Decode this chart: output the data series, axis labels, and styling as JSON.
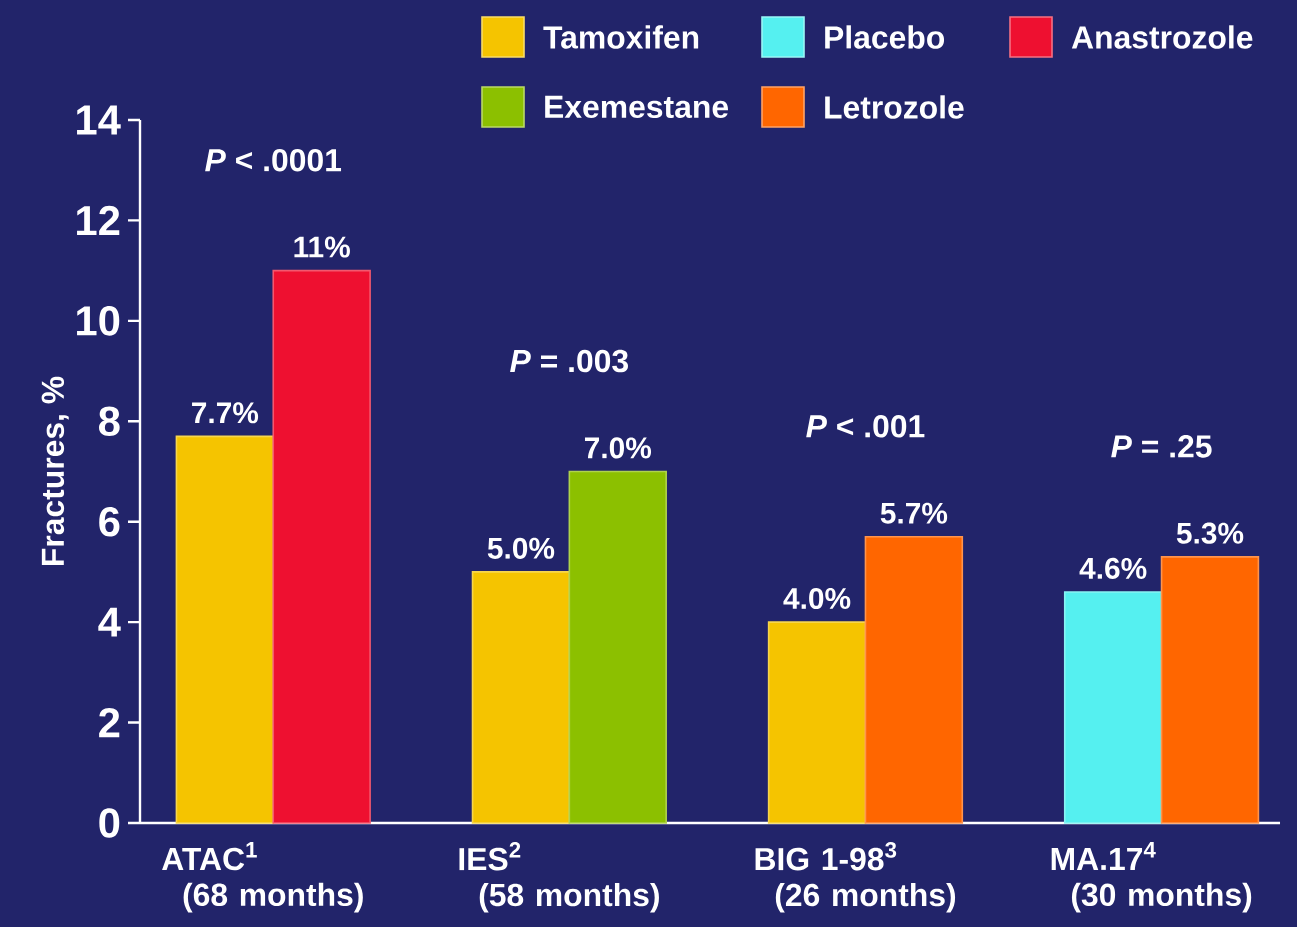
{
  "chart_data": {
    "type": "bar",
    "ylabel": "Fractures, %",
    "categories": [
      "ATAC$^{1}$ (68 months)",
      "IES$^{2}$ (58 months)",
      "BIG 1-98$^{3}$ (26 months)",
      "MA.17$^{4}$ (30 months)"
    ],
    "series": [
      {
        "name": "Tamoxifen",
        "color": "#f5c400",
        "values": [
          7.7,
          5.0,
          4.0,
          null
        ],
        "value_labels": [
          "7.7%",
          "5.0%",
          "4.0%",
          null
        ]
      },
      {
        "name": "Placebo",
        "color": "#55f0f0",
        "values": [
          null,
          null,
          null,
          4.6
        ],
        "value_labels": [
          null,
          null,
          null,
          "4.6%"
        ]
      },
      {
        "name": "Anastrozole",
        "color": "#ee1030",
        "values": [
          11,
          null,
          null,
          null
        ],
        "value_labels": [
          "11%",
          null,
          null,
          null
        ]
      },
      {
        "name": "Exemestane",
        "color": "#8cc000",
        "values": [
          null,
          7.0,
          null,
          null
        ],
        "value_labels": [
          null,
          "7.0%",
          null,
          null
        ]
      },
      {
        "name": "Letrozole",
        "color": "#ff6600",
        "values": [
          null,
          null,
          5.7,
          5.3
        ],
        "value_labels": [
          null,
          null,
          "5.7%",
          "5.3%"
        ]
      }
    ],
    "annotations": [
      "*P* < .0001",
      "*P* = .003",
      "*P* < .001",
      "*P* = .25"
    ],
    "ylim": [
      0,
      14
    ],
    "yticks": [
      0,
      2,
      4,
      6,
      8,
      10,
      12,
      14
    ],
    "grid": false,
    "legend": "top right"
  }
}
